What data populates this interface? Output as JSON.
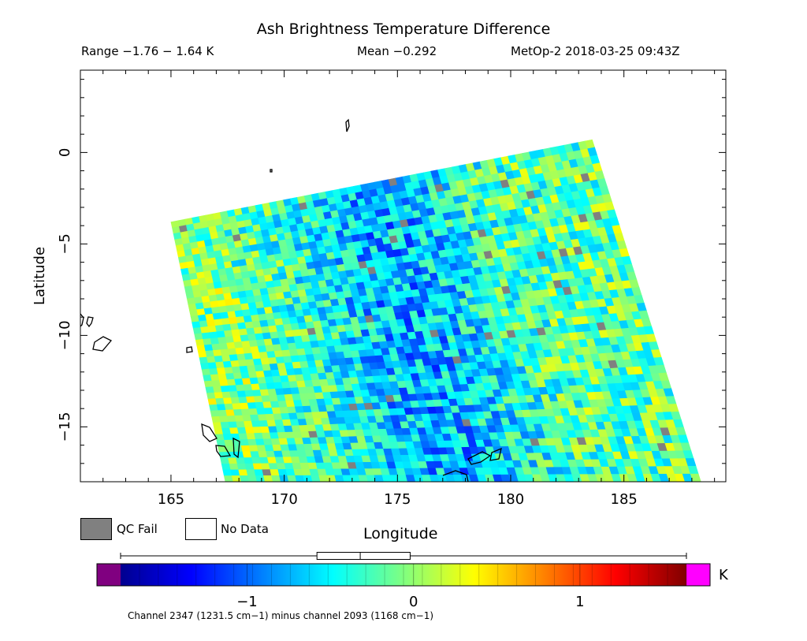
{
  "header": {
    "title": "Ash Brightness Temperature Difference",
    "range": "Range −1.76 − 1.64 K",
    "mean": "Mean −0.292",
    "satellite_time": "MetOp-2 2018-03-25 09:43Z"
  },
  "map": {
    "xlabel": "Longitude",
    "ylabel": "Latitude",
    "lon_range": [
      161,
      189.5
    ],
    "lat_range": [
      -18,
      4.5
    ],
    "x_ticks": [
      165,
      170,
      175,
      180,
      185
    ],
    "x_tick_labels": [
      "165",
      "170",
      "175",
      "180",
      "185"
    ],
    "y_ticks": [
      0,
      -5,
      -10,
      -15
    ],
    "y_tick_labels": [
      "0",
      "−5",
      "−10",
      "−15"
    ],
    "swath_corners": [
      [
        165.0,
        -3.8
      ],
      [
        183.6,
        0.7
      ],
      [
        188.4,
        -18
      ],
      [
        167.4,
        -18
      ]
    ],
    "coastline": "black",
    "background": "white"
  },
  "legend": {
    "qc_fail_label": "QC Fail",
    "qc_fail_color": "#808080",
    "no_data_label": "No Data",
    "no_data_color": "#ffffff"
  },
  "colorbar": {
    "min": -1.76,
    "max": 1.64,
    "ticks": [
      -1,
      0,
      1
    ],
    "tick_labels": [
      "−1",
      "0",
      "1"
    ],
    "unit": "K",
    "under_color": "#800080",
    "over_color": "#ff00ff",
    "colormap": "jet",
    "boxplot": {
      "whisker_low": -1.76,
      "q1": -0.58,
      "median": -0.32,
      "q3": -0.02,
      "whisker_high": 1.64
    }
  },
  "footnote": "Channel 2347 (1231.5 cm−1) minus channel 2093 (1168 cm−1)"
}
